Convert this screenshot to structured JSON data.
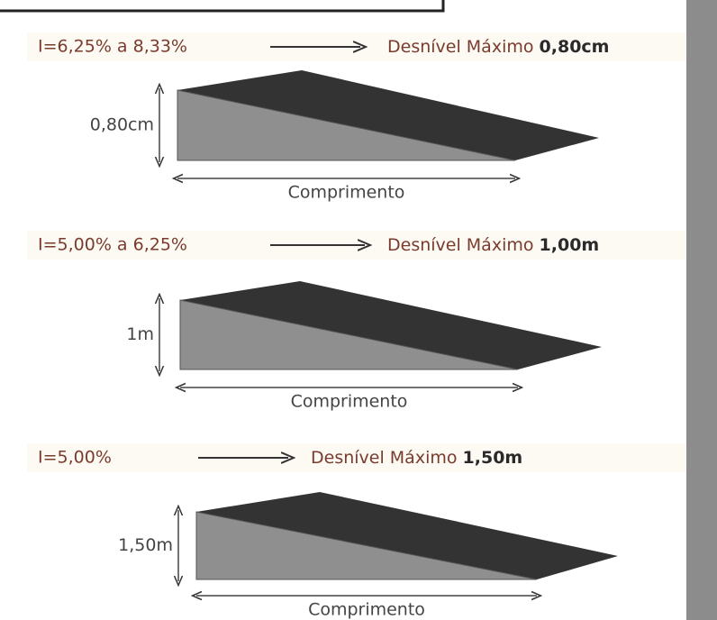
{
  "ramps": [
    {
      "slope": "I=6,25% a 8,33%",
      "label": "Desnível Máximo",
      "max_height": "0,80cm",
      "height": "0,80cm",
      "length": "Comprimento"
    },
    {
      "slope": "I=5,00% a 6,25%",
      "label": "Desnível Máximo",
      "max_height": "1,00m",
      "height": "1m",
      "length": "Comprimento"
    },
    {
      "slope": "I=5,00%",
      "label": "Desnível Máximo",
      "max_height": "1,50m",
      "height": "1,50m",
      "length": "Comprimento"
    }
  ]
}
